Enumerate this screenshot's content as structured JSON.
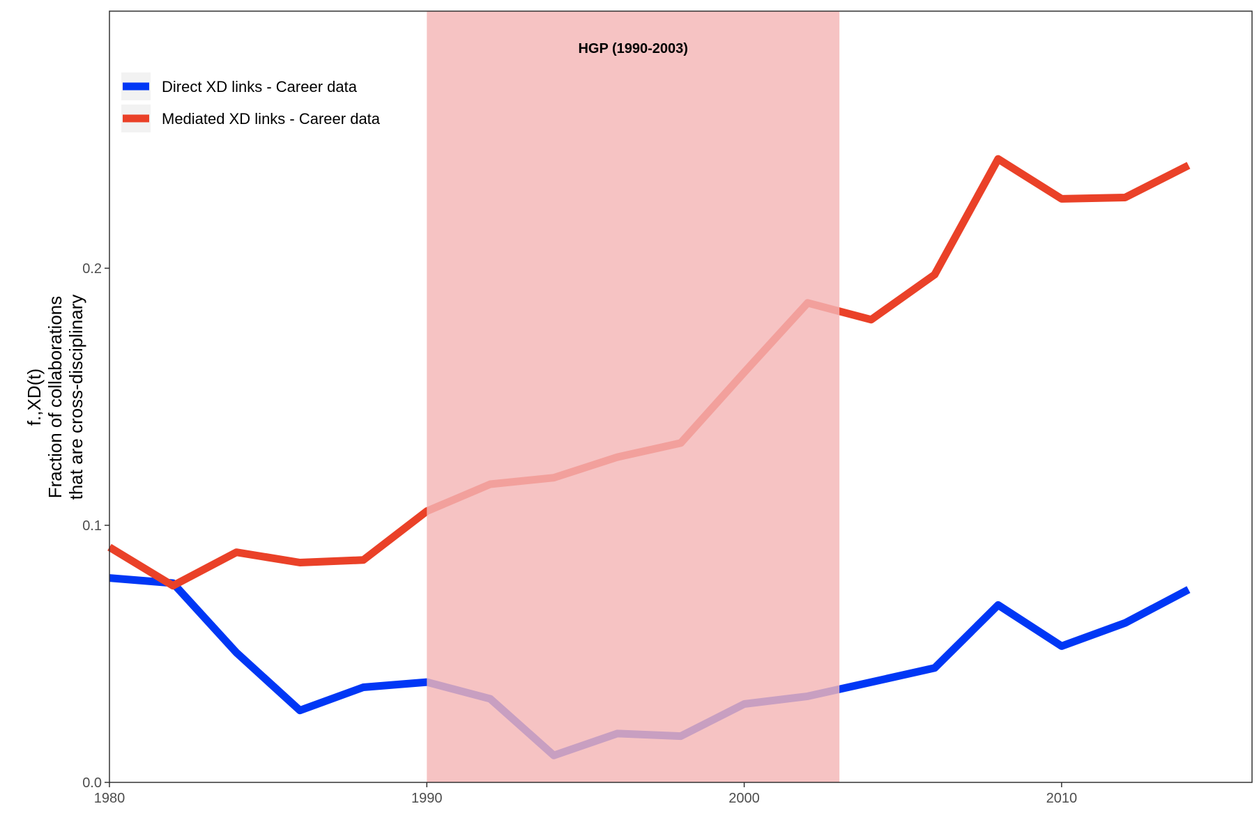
{
  "chart_data": {
    "type": "line",
    "title": "",
    "xlabel": "",
    "ylabel_lines": [
      "f.,XD(t)",
      "Fraction of collaborations",
      "that are cross-disciplinary"
    ],
    "xlim": [
      1980,
      2016
    ],
    "ylim": [
      0.0,
      0.3
    ],
    "x_ticks": [
      1980,
      1990,
      2000,
      2010
    ],
    "y_ticks": [
      0.0,
      0.1,
      0.2
    ],
    "y_tick_labels": [
      "0.0",
      "0.1",
      "0.2"
    ],
    "grid": false,
    "legend_position": "top-left",
    "shaded_region": {
      "x_start": 1990,
      "x_end": 2003,
      "label": "HGP (1990-2003)",
      "color": "#f4b6b6"
    },
    "x": [
      1980,
      1982,
      1984,
      1986,
      1988,
      1990,
      1992,
      1994,
      1996,
      1998,
      2000,
      2002,
      2004,
      2006,
      2008,
      2010,
      2012,
      2014
    ],
    "series": [
      {
        "name": "Direct XD links - Career data",
        "color": "#0037f5",
        "values": [
          0.0795,
          0.0775,
          0.0505,
          0.028,
          0.037,
          0.039,
          0.0325,
          0.0105,
          0.019,
          0.018,
          0.0305,
          0.0335,
          0.039,
          0.0445,
          0.069,
          0.053,
          0.062,
          0.075
        ]
      },
      {
        "name": "Mediated XD links - Career data",
        "color": "#ea4128",
        "values": [
          0.0915,
          0.0765,
          0.0895,
          0.0855,
          0.0865,
          0.1055,
          0.116,
          0.1185,
          0.1265,
          0.132,
          0.1595,
          0.1865,
          0.18,
          0.1975,
          0.2425,
          0.227,
          0.2275,
          0.24
        ]
      }
    ]
  }
}
